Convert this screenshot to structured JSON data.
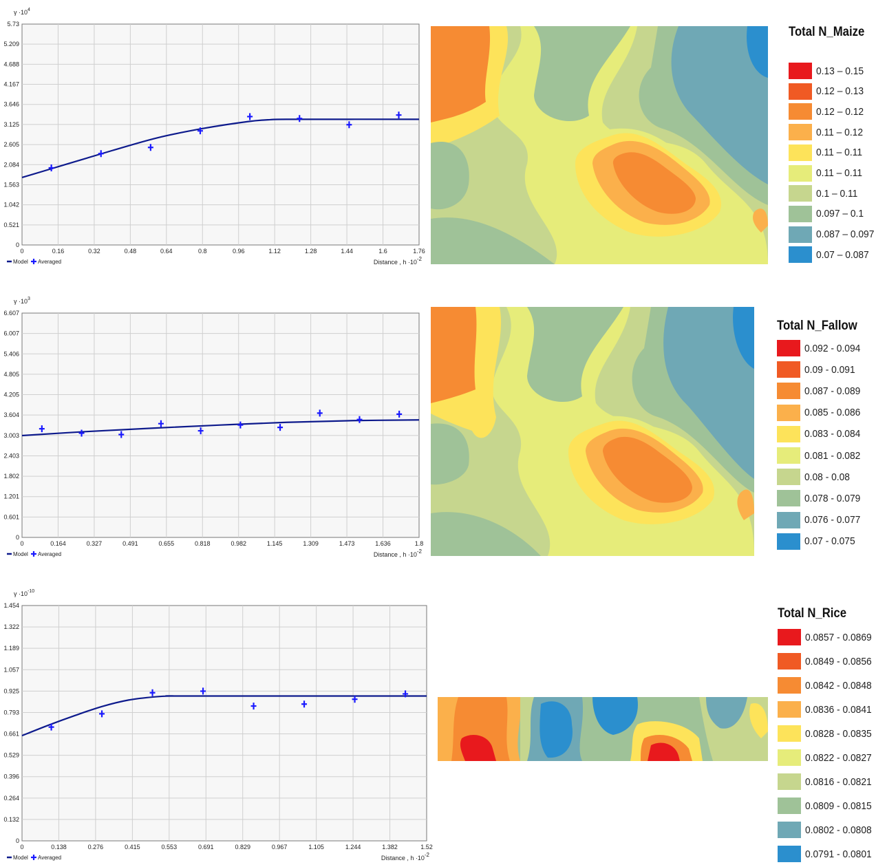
{
  "colors": {
    "model_line": "#0d1a8c",
    "averaged_marker": "#1a1aff",
    "plot_bg": "#f7f7f7",
    "grid": "#cfcfcf",
    "ramp": [
      "#e8191d",
      "#f05a24",
      "#f68b33",
      "#fbb04b",
      "#fde35a",
      "#e6ec7a",
      "#c6d68e",
      "#9fc298",
      "#6fa8b5",
      "#2b8fce"
    ]
  },
  "chart_data": [
    {
      "type": "scatter",
      "title": "",
      "ylabel_base": "γ ·10",
      "ylabel_exp": "4",
      "xlabel_base": "Distance , h ·10",
      "xlabel_exp": "-2",
      "ylim": [
        0,
        5.73
      ],
      "xlim": [
        0,
        1.76
      ],
      "x_ticks": [
        "0",
        "0.16",
        "0.32",
        "0.48",
        "0.64",
        "0.8",
        "0.96",
        "1.12",
        "1.28",
        "1.44",
        "1.6",
        "1.76"
      ],
      "y_ticks": [
        "0",
        "0.521",
        "1.042",
        "1.563",
        "2.084",
        "2.605",
        "3.125",
        "3.646",
        "4.167",
        "4.688",
        "5.209",
        "5.73"
      ],
      "legend": [
        "Model",
        "Averaged"
      ],
      "series": [
        {
          "name": "Model",
          "kind": "line",
          "x": [
            0,
            0.2,
            0.4,
            0.6,
            0.8,
            1.0,
            1.1,
            1.2,
            1.76
          ],
          "y": [
            1.75,
            2.1,
            2.45,
            2.78,
            3.02,
            3.2,
            3.25,
            3.26,
            3.26
          ]
        },
        {
          "name": "Averaged",
          "kind": "points",
          "x": [
            0.13,
            0.35,
            0.57,
            0.79,
            1.01,
            1.23,
            1.45,
            1.67
          ],
          "y": [
            2.0,
            2.37,
            2.53,
            2.96,
            3.33,
            3.28,
            3.12,
            3.37
          ]
        }
      ]
    },
    {
      "type": "scatter",
      "title": "",
      "ylabel_base": "γ ·10",
      "ylabel_exp": "3",
      "xlabel_base": "Distance , h ·10",
      "xlabel_exp": "-2",
      "ylim": [
        0,
        6.607
      ],
      "xlim": [
        0,
        1.8
      ],
      "x_ticks": [
        "0",
        "0.164",
        "0.327",
        "0.491",
        "0.655",
        "0.818",
        "0.982",
        "1.145",
        "1.309",
        "1.473",
        "1.636",
        "1.8"
      ],
      "y_ticks": [
        "0",
        "0.601",
        "1.201",
        "1.802",
        "2.403",
        "3.003",
        "3.604",
        "4.205",
        "4.805",
        "5.406",
        "6.007",
        "6.607"
      ],
      "legend": [
        "Model",
        "Averaged"
      ],
      "series": [
        {
          "name": "Model",
          "kind": "line",
          "x": [
            0,
            0.3,
            0.6,
            0.9,
            1.2,
            1.5,
            1.8
          ],
          "y": [
            3.0,
            3.12,
            3.22,
            3.31,
            3.39,
            3.44,
            3.46
          ]
        },
        {
          "name": "Averaged",
          "kind": "points",
          "x": [
            0.09,
            0.27,
            0.45,
            0.63,
            0.81,
            0.99,
            1.17,
            1.35,
            1.53,
            1.71
          ],
          "y": [
            3.2,
            3.07,
            3.03,
            3.35,
            3.14,
            3.31,
            3.24,
            3.66,
            3.47,
            3.63
          ]
        }
      ]
    },
    {
      "type": "scatter",
      "title": "",
      "ylabel_base": "γ ·10",
      "ylabel_exp": "-10",
      "xlabel_base": "Distance , h ·10",
      "xlabel_exp": "-2",
      "ylim": [
        0,
        1.454
      ],
      "xlim": [
        0,
        1.52
      ],
      "x_ticks": [
        "0",
        "0.138",
        "0.276",
        "0.415",
        "0.553",
        "0.691",
        "0.829",
        "0.967",
        "1.105",
        "1.244",
        "1.382",
        "1.52"
      ],
      "y_ticks": [
        "0",
        "0.132",
        "0.264",
        "0.396",
        "0.529",
        "0.661",
        "0.793",
        "0.925",
        "1.057",
        "1.189",
        "1.322",
        "1.454"
      ],
      "legend": [
        "Model",
        "Averaged"
      ],
      "series": [
        {
          "name": "Model",
          "kind": "line",
          "x": [
            0,
            0.1,
            0.2,
            0.3,
            0.4,
            0.5,
            0.57,
            0.62,
            1.52
          ],
          "y": [
            0.65,
            0.715,
            0.775,
            0.83,
            0.87,
            0.89,
            0.895,
            0.895,
            0.895
          ]
        },
        {
          "name": "Averaged",
          "kind": "points",
          "x": [
            0.11,
            0.3,
            0.49,
            0.68,
            0.87,
            1.06,
            1.25,
            1.44
          ],
          "y": [
            0.703,
            0.785,
            0.915,
            0.925,
            0.833,
            0.845,
            0.875,
            0.908
          ]
        }
      ]
    }
  ],
  "legends": [
    {
      "title": "Total N_Maize",
      "classes": [
        "0.13 – 0.15",
        "0.12 – 0.13",
        "0.12 – 0.12",
        "0.11 – 0.12",
        "0.11 – 0.11",
        "0.11 – 0.11",
        "0.1 – 0.11",
        "0.097 – 0.1",
        "0.087 – 0.097",
        "0.07 – 0.087"
      ]
    },
    {
      "title": "Total N_Fallow",
      "classes": [
        "0.092 - 0.094",
        "0.09 - 0.091",
        "0.087 - 0.089",
        "0.085 - 0.086",
        "0.083 - 0.084",
        "0.081 - 0.082",
        "0.08 - 0.08",
        "0.078 - 0.079",
        "0.076 - 0.077",
        "0.07 - 0.075"
      ]
    },
    {
      "title": "Total N_Rice",
      "classes": [
        "0.0857 - 0.0869",
        "0.0849 - 0.0856",
        "0.0842 - 0.0848",
        "0.0836 - 0.0841",
        "0.0828 - 0.0835",
        "0.0822 - 0.0827",
        "0.0816 - 0.0821",
        "0.0809 - 0.0815",
        "0.0802 - 0.0808",
        "0.0791 - 0.0801"
      ]
    }
  ]
}
